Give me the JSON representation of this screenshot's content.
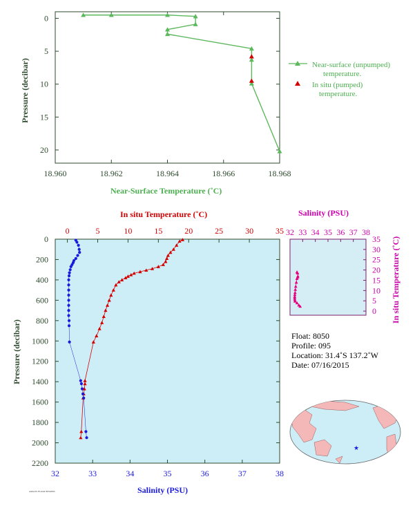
{
  "chart_data": [
    {
      "type": "line",
      "xlabel": "Near-Surface Temperature (˚C)",
      "ylabel": "Pressure (decibar)",
      "xlim": [
        18.96,
        18.968
      ],
      "ylim": [
        22,
        -1
      ],
      "xticks": [
        "18.960",
        "18.962",
        "18.964",
        "18.966",
        "18.968"
      ],
      "yticks": [
        "0",
        "5",
        "10",
        "15",
        "20"
      ],
      "legend_position": "right",
      "series": [
        {
          "name": "Near-surface (unpumped) temperature.",
          "color": "#5cb85c",
          "x": [
            18.961,
            18.962,
            18.964,
            18.965,
            18.965,
            18.964,
            18.964,
            18.967,
            18.967,
            18.967,
            18.968
          ],
          "y": [
            -0.5,
            -0.5,
            -0.5,
            -0.3,
            0.9,
            1.7,
            2.4,
            4.6,
            6.3,
            9.9,
            20.2
          ]
        },
        {
          "name": "In situ (pumped) temperature.",
          "color": "#d40000",
          "x": [
            18.967,
            18.967
          ],
          "y": [
            5.8,
            9.5
          ]
        }
      ]
    },
    {
      "type": "scatter",
      "ylabel": "Pressure (decibar)",
      "ylim": [
        2200,
        0
      ],
      "yticks": [
        "0",
        "200",
        "400",
        "600",
        "800",
        "1000",
        "1200",
        "1400",
        "1600",
        "1800",
        "2000",
        "2200"
      ],
      "top_axis": {
        "label": "In situ Temperature (˚C)",
        "range": [
          -2,
          35
        ],
        "ticks": [
          "0",
          "5",
          "10",
          "15",
          "20",
          "25",
          "30",
          "35"
        ]
      },
      "bottom_axis": {
        "label": "Salinity (PSU)",
        "range": [
          32,
          38
        ],
        "ticks": [
          "32",
          "33",
          "34",
          "35",
          "36",
          "37",
          "38"
        ]
      },
      "series": [
        {
          "name": "temperature",
          "color": "#d40000",
          "points": [
            [
              19,
              5
            ],
            [
              18.5,
              20
            ],
            [
              18,
              60
            ],
            [
              17.5,
              100
            ],
            [
              17,
              130
            ],
            [
              16.6,
              160
            ],
            [
              16.4,
              190
            ],
            [
              16.2,
              220
            ],
            [
              15.8,
              250
            ],
            [
              15,
              270
            ],
            [
              14,
              290
            ],
            [
              13,
              305
            ],
            [
              12,
              320
            ],
            [
              11,
              335
            ],
            [
              10.5,
              350
            ],
            [
              10,
              365
            ],
            [
              9.6,
              380
            ],
            [
              9,
              400
            ],
            [
              8.5,
              420
            ],
            [
              8,
              450
            ],
            [
              7.6,
              500
            ],
            [
              7.2,
              550
            ],
            [
              6.9,
              600
            ],
            [
              6.6,
              650
            ],
            [
              6.3,
              700
            ],
            [
              6,
              760
            ],
            [
              5.7,
              820
            ],
            [
              5.3,
              880
            ],
            [
              4.8,
              950
            ],
            [
              4.3,
              1010
            ],
            [
              2.9,
              1390
            ],
            [
              2.9,
              1420
            ],
            [
              2.8,
              1470
            ],
            [
              2.7,
              1520
            ],
            [
              2.6,
              1560
            ],
            [
              2.3,
              1890
            ],
            [
              2.2,
              1950
            ]
          ]
        },
        {
          "name": "salinity",
          "color": "#1a1adc",
          "points": [
            [
              32.55,
              10
            ],
            [
              32.58,
              30
            ],
            [
              32.62,
              60
            ],
            [
              32.64,
              100
            ],
            [
              32.65,
              130
            ],
            [
              32.6,
              160
            ],
            [
              32.55,
              190
            ],
            [
              32.5,
              210
            ],
            [
              32.48,
              230
            ],
            [
              32.45,
              250
            ],
            [
              32.42,
              270
            ],
            [
              32.4,
              300
            ],
            [
              32.38,
              330
            ],
            [
              32.37,
              360
            ],
            [
              32.36,
              400
            ],
            [
              32.36,
              450
            ],
            [
              32.36,
              500
            ],
            [
              32.36,
              550
            ],
            [
              32.36,
              600
            ],
            [
              32.36,
              650
            ],
            [
              32.36,
              700
            ],
            [
              32.36,
              750
            ],
            [
              32.37,
              800
            ],
            [
              32.37,
              850
            ],
            [
              32.38,
              1010
            ],
            [
              32.68,
              1390
            ],
            [
              32.7,
              1420
            ],
            [
              32.72,
              1470
            ],
            [
              32.74,
              1520
            ],
            [
              32.76,
              1560
            ],
            [
              32.82,
              1890
            ],
            [
              32.84,
              1950
            ]
          ]
        }
      ]
    },
    {
      "type": "scatter",
      "title": "Salinity (PSU)",
      "ylabel": "In situ Temperature (˚C)",
      "xlim": [
        32,
        38
      ],
      "ylim": [
        -2,
        35
      ],
      "xticks": [
        "32",
        "33",
        "34",
        "35",
        "36",
        "37",
        "38"
      ],
      "yticks": [
        "0",
        "5",
        "10",
        "15",
        "20",
        "25",
        "30",
        "35"
      ],
      "color": "#e6007e",
      "points": [
        [
          32.55,
          19
        ],
        [
          32.6,
          18.5
        ],
        [
          32.62,
          17
        ],
        [
          32.6,
          16.5
        ],
        [
          32.55,
          15.8
        ],
        [
          32.5,
          14
        ],
        [
          32.45,
          12
        ],
        [
          32.42,
          10.5
        ],
        [
          32.4,
          9
        ],
        [
          32.38,
          8
        ],
        [
          32.37,
          7
        ],
        [
          32.37,
          6.3
        ],
        [
          32.38,
          5.5
        ],
        [
          32.4,
          4.8
        ],
        [
          32.55,
          4
        ],
        [
          32.7,
          2.9
        ],
        [
          32.8,
          2.3
        ]
      ]
    }
  ],
  "float_info": {
    "float": "Float:  8050",
    "profile": "Profile:  095",
    "location": "Location:  31.4˚S  137.2˚W",
    "date": "Date:  07/16/2015"
  },
  "tiny_credit": "ARGOS FLOAT 8050/095"
}
